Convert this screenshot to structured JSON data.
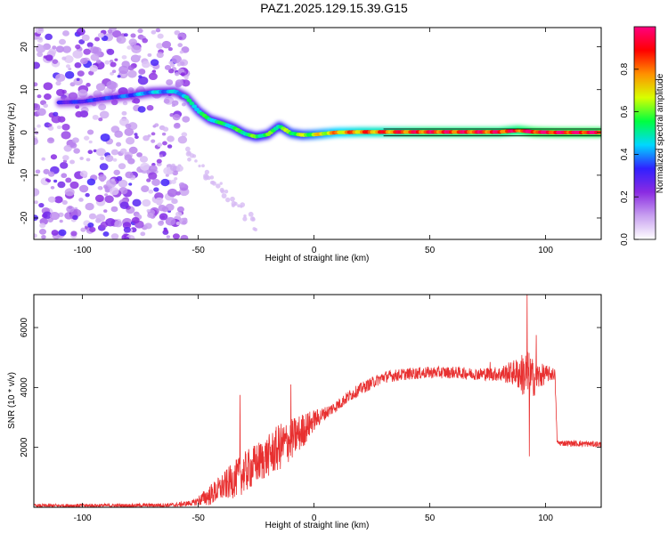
{
  "figure": {
    "title": "PAZ1.2025.129.15.39.G15"
  },
  "chart_data": [
    {
      "type": "heatmap",
      "xlabel": "Height of straight line (km)",
      "ylabel": "Frequency (Hz)",
      "xlim": [
        -121,
        124
      ],
      "ylim": [
        -25,
        24.5
      ],
      "xticks": [
        -100,
        -50,
        0,
        50,
        100
      ],
      "yticks": [
        -20,
        -10,
        0,
        10,
        20
      ],
      "colorbar": {
        "label": "Normalized spectral amplitude",
        "range": [
          0,
          1
        ],
        "ticks": [
          "0.0",
          "0.2",
          "0.4",
          "0.6",
          "0.8"
        ],
        "colormap": [
          "#ffffff",
          "#c8a0f0",
          "#8a2be2",
          "#3020ff",
          "#00d8ff",
          "#00ff40",
          "#d8ff00",
          "#ff9000",
          "#ff0000",
          "#ff0080"
        ]
      },
      "ridge": [
        {
          "x": -110,
          "y": 7.0,
          "amp": 0.3
        },
        {
          "x": -100,
          "y": 7.2,
          "amp": 0.35
        },
        {
          "x": -90,
          "y": 8.0,
          "amp": 0.35
        },
        {
          "x": -80,
          "y": 8.6,
          "amp": 0.4
        },
        {
          "x": -70,
          "y": 9.4,
          "amp": 0.45
        },
        {
          "x": -60,
          "y": 9.6,
          "amp": 0.45
        },
        {
          "x": -55,
          "y": 8.2,
          "amp": 0.5
        },
        {
          "x": -50,
          "y": 5.0,
          "amp": 0.55
        },
        {
          "x": -45,
          "y": 3.0,
          "amp": 0.55
        },
        {
          "x": -40,
          "y": 2.2,
          "amp": 0.55
        },
        {
          "x": -35,
          "y": 1.2,
          "amp": 0.55
        },
        {
          "x": -30,
          "y": -0.3,
          "amp": 0.6
        },
        {
          "x": -25,
          "y": -1.0,
          "amp": 0.6
        },
        {
          "x": -20,
          "y": -0.5,
          "amp": 0.6
        },
        {
          "x": -15,
          "y": 1.5,
          "amp": 0.6
        },
        {
          "x": -10,
          "y": -0.2,
          "amp": 0.65
        },
        {
          "x": -5,
          "y": -0.6,
          "amp": 0.65
        },
        {
          "x": 0,
          "y": -0.5,
          "amp": 0.7
        },
        {
          "x": 10,
          "y": 0.0,
          "amp": 0.8
        },
        {
          "x": 20,
          "y": 0.1,
          "amp": 0.85
        },
        {
          "x": 30,
          "y": 0.1,
          "amp": 0.88
        },
        {
          "x": 40,
          "y": 0.1,
          "amp": 0.92
        },
        {
          "x": 50,
          "y": 0.1,
          "amp": 0.95
        },
        {
          "x": 60,
          "y": 0.1,
          "amp": 0.95
        },
        {
          "x": 70,
          "y": 0.1,
          "amp": 0.95
        },
        {
          "x": 80,
          "y": 0.1,
          "amp": 0.95
        },
        {
          "x": 88,
          "y": 0.5,
          "amp": 0.95
        },
        {
          "x": 95,
          "y": 0.1,
          "amp": 1.0
        },
        {
          "x": 104,
          "y": 0.0,
          "amp": 1.0
        },
        {
          "x": 124,
          "y": 0.0,
          "amp": 1.0
        }
      ],
      "noise_region_x": [
        -121,
        -55
      ]
    },
    {
      "type": "line",
      "xlabel": "Height of straight line (km)",
      "ylabel": "SNR (10 * v/v)",
      "xlim": [
        -121,
        124
      ],
      "ylim": [
        0,
        7100
      ],
      "xticks": [
        -100,
        -50,
        0,
        50,
        100
      ],
      "yticks": [
        2000,
        4000,
        6000
      ],
      "color": "#e83030",
      "points": [
        {
          "x": -121,
          "y": 50,
          "noise": 60
        },
        {
          "x": -100,
          "y": 60,
          "noise": 60
        },
        {
          "x": -80,
          "y": 60,
          "noise": 60
        },
        {
          "x": -60,
          "y": 80,
          "noise": 70
        },
        {
          "x": -52,
          "y": 150,
          "noise": 100
        },
        {
          "x": -45,
          "y": 400,
          "noise": 350
        },
        {
          "x": -40,
          "y": 650,
          "noise": 450
        },
        {
          "x": -35,
          "y": 900,
          "noise": 600
        },
        {
          "x": -30,
          "y": 1150,
          "noise": 700
        },
        {
          "x": -25,
          "y": 1450,
          "noise": 700
        },
        {
          "x": -20,
          "y": 1700,
          "noise": 700
        },
        {
          "x": -15,
          "y": 2000,
          "noise": 800
        },
        {
          "x": -10,
          "y": 2250,
          "noise": 700
        },
        {
          "x": -5,
          "y": 2550,
          "noise": 600
        },
        {
          "x": 0,
          "y": 2900,
          "noise": 350
        },
        {
          "x": 5,
          "y": 3150,
          "noise": 220
        },
        {
          "x": 10,
          "y": 3400,
          "noise": 200
        },
        {
          "x": 15,
          "y": 3700,
          "noise": 200
        },
        {
          "x": 20,
          "y": 3950,
          "noise": 200
        },
        {
          "x": 25,
          "y": 4150,
          "noise": 200
        },
        {
          "x": 30,
          "y": 4350,
          "noise": 200
        },
        {
          "x": 40,
          "y": 4450,
          "noise": 200
        },
        {
          "x": 50,
          "y": 4500,
          "noise": 200
        },
        {
          "x": 60,
          "y": 4500,
          "noise": 200
        },
        {
          "x": 70,
          "y": 4450,
          "noise": 200
        },
        {
          "x": 80,
          "y": 4450,
          "noise": 250
        },
        {
          "x": 87,
          "y": 4500,
          "noise": 450
        },
        {
          "x": 92,
          "y": 4400,
          "noise": 900
        },
        {
          "x": 95,
          "y": 4300,
          "noise": 600
        },
        {
          "x": 100,
          "y": 4450,
          "noise": 300
        },
        {
          "x": 104,
          "y": 4450,
          "noise": 200
        },
        {
          "x": 105,
          "y": 2150,
          "noise": 100
        },
        {
          "x": 124,
          "y": 2100,
          "noise": 100
        }
      ],
      "spikes": [
        {
          "x": -32,
          "y": 3750
        },
        {
          "x": -10,
          "y": 4100
        },
        {
          "x": 76,
          "y": 4850
        },
        {
          "x": 92,
          "y": 7100
        },
        {
          "x": 93,
          "y": 1700
        },
        {
          "x": 96,
          "y": 5750
        }
      ]
    }
  ]
}
